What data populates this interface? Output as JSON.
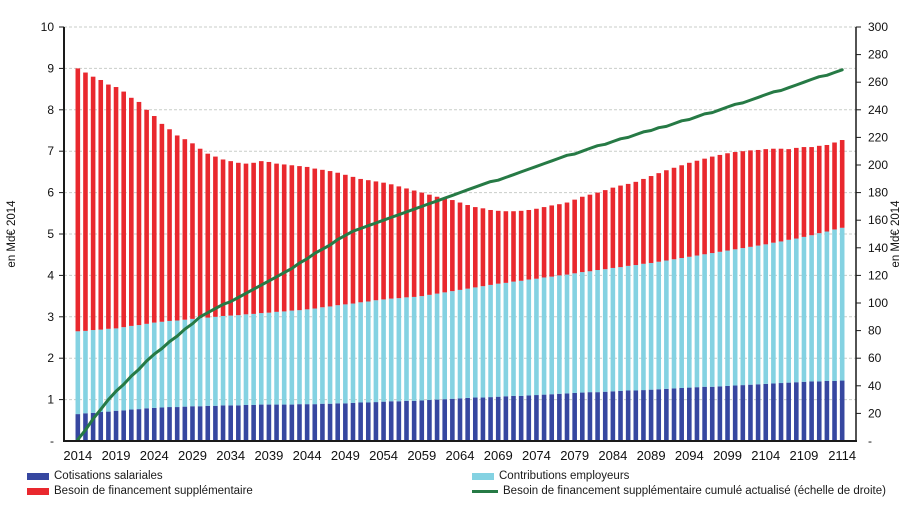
{
  "chart_data": {
    "type": "combo-stacked-bar-line",
    "title": "",
    "x_start": 2014,
    "x_end": 2114,
    "x_tick_step": 5,
    "x_tick_labels": [
      "2014",
      "2019",
      "2024",
      "2029",
      "2034",
      "2039",
      "2044",
      "2049",
      "2054",
      "2059",
      "2064",
      "2069",
      "2074",
      "2079",
      "2084",
      "2089",
      "2094",
      "2099",
      "2104",
      "2109",
      "2114"
    ],
    "left_axis": {
      "label": "en Md€ 2014",
      "min": 0,
      "max": 10,
      "step": 1,
      "tick_labels": [
        "10",
        "9",
        "8",
        "7",
        "6",
        "5",
        "4",
        "3",
        "2",
        "1",
        "-"
      ]
    },
    "right_axis": {
      "label": "en Md€ 2014",
      "min": 0,
      "max": 300,
      "step": 20,
      "tick_labels": [
        "300",
        "280",
        "260",
        "240",
        "220",
        "200",
        "180",
        "160",
        "140",
        "120",
        "100",
        "80",
        "60",
        "40",
        "20",
        "-"
      ]
    },
    "grid": {
      "on": true,
      "color": "#c9cdc9",
      "dash": "3 2"
    },
    "axis_line_color": "#1a1a1a",
    "legend_position": "bottom-two-columns",
    "series": [
      {
        "name": "Cotisations salariales",
        "type": "bar-stack",
        "axis": "left",
        "color": "#3647a0",
        "values": [
          0.65,
          0.67,
          0.68,
          0.7,
          0.71,
          0.73,
          0.74,
          0.76,
          0.77,
          0.79,
          0.8,
          0.81,
          0.82,
          0.82,
          0.83,
          0.84,
          0.84,
          0.85,
          0.85,
          0.86,
          0.86,
          0.86,
          0.87,
          0.87,
          0.88,
          0.88,
          0.88,
          0.88,
          0.88,
          0.89,
          0.89,
          0.89,
          0.9,
          0.9,
          0.91,
          0.91,
          0.92,
          0.93,
          0.93,
          0.94,
          0.95,
          0.96,
          0.96,
          0.97,
          0.97,
          0.98,
          0.99,
          1.0,
          1.01,
          1.02,
          1.03,
          1.04,
          1.05,
          1.05,
          1.06,
          1.07,
          1.08,
          1.09,
          1.09,
          1.1,
          1.11,
          1.12,
          1.13,
          1.14,
          1.15,
          1.16,
          1.17,
          1.18,
          1.18,
          1.19,
          1.2,
          1.21,
          1.22,
          1.22,
          1.23,
          1.24,
          1.25,
          1.26,
          1.27,
          1.28,
          1.29,
          1.3,
          1.31,
          1.31,
          1.32,
          1.33,
          1.34,
          1.35,
          1.36,
          1.37,
          1.38,
          1.39,
          1.4,
          1.41,
          1.42,
          1.43,
          1.44,
          1.44,
          1.45,
          1.45,
          1.46
        ]
      },
      {
        "name": "Contributions employeurs",
        "type": "bar-stack",
        "axis": "left",
        "color": "#84d2e2",
        "values": [
          2.0,
          1.99,
          2.0,
          1.99,
          2.0,
          1.99,
          2.01,
          2.02,
          2.03,
          2.04,
          2.06,
          2.07,
          2.08,
          2.09,
          2.1,
          2.11,
          2.13,
          2.13,
          2.15,
          2.16,
          2.17,
          2.18,
          2.19,
          2.2,
          2.21,
          2.22,
          2.24,
          2.25,
          2.27,
          2.27,
          2.29,
          2.31,
          2.33,
          2.35,
          2.37,
          2.39,
          2.4,
          2.42,
          2.44,
          2.46,
          2.47,
          2.48,
          2.49,
          2.5,
          2.51,
          2.52,
          2.54,
          2.56,
          2.58,
          2.6,
          2.62,
          2.64,
          2.66,
          2.69,
          2.71,
          2.73,
          2.74,
          2.76,
          2.78,
          2.8,
          2.81,
          2.83,
          2.84,
          2.86,
          2.87,
          2.89,
          2.91,
          2.92,
          2.95,
          2.96,
          2.98,
          2.99,
          3.01,
          3.03,
          3.05,
          3.06,
          3.08,
          3.1,
          3.12,
          3.14,
          3.16,
          3.18,
          3.2,
          3.23,
          3.25,
          3.27,
          3.29,
          3.31,
          3.33,
          3.35,
          3.37,
          3.4,
          3.42,
          3.45,
          3.47,
          3.5,
          3.53,
          3.58,
          3.61,
          3.66,
          3.69
        ]
      },
      {
        "name": "Besoin de financement supplémentaire",
        "type": "bar-stack",
        "axis": "left",
        "color": "#e9282e",
        "values": [
          6.35,
          6.24,
          6.12,
          6.03,
          5.9,
          5.83,
          5.69,
          5.51,
          5.39,
          5.17,
          4.99,
          4.78,
          4.63,
          4.47,
          4.36,
          4.24,
          4.09,
          3.96,
          3.87,
          3.78,
          3.73,
          3.68,
          3.64,
          3.65,
          3.67,
          3.64,
          3.58,
          3.55,
          3.51,
          3.48,
          3.44,
          3.38,
          3.32,
          3.27,
          3.2,
          3.13,
          3.06,
          2.98,
          2.93,
          2.87,
          2.82,
          2.76,
          2.7,
          2.63,
          2.57,
          2.5,
          2.42,
          2.34,
          2.27,
          2.2,
          2.11,
          2.02,
          1.94,
          1.88,
          1.81,
          1.76,
          1.73,
          1.7,
          1.69,
          1.68,
          1.69,
          1.7,
          1.72,
          1.72,
          1.74,
          1.78,
          1.82,
          1.85,
          1.87,
          1.91,
          1.94,
          1.97,
          1.98,
          2.01,
          2.05,
          2.1,
          2.14,
          2.18,
          2.21,
          2.24,
          2.27,
          2.29,
          2.31,
          2.33,
          2.34,
          2.35,
          2.35,
          2.34,
          2.33,
          2.31,
          2.3,
          2.27,
          2.24,
          2.19,
          2.19,
          2.17,
          2.13,
          2.11,
          2.09,
          2.1,
          2.12
        ]
      },
      {
        "name": "Besoin de financement supplémentaire cumulé actualisé (échelle de droite)",
        "type": "line",
        "axis": "right",
        "color": "#267a45",
        "values": [
          1,
          8,
          16,
          23,
          30,
          36,
          41,
          47,
          52,
          58,
          63,
          67,
          72,
          76,
          81,
          85,
          90,
          93,
          96,
          99,
          101,
          104,
          107,
          110,
          113,
          116,
          119,
          122,
          125,
          129,
          132,
          136,
          139,
          142,
          146,
          149,
          152,
          154,
          156,
          158,
          160,
          162,
          164,
          166,
          168,
          170,
          172,
          174,
          176,
          178,
          180,
          182,
          184,
          186,
          188,
          189,
          191,
          193,
          195,
          197,
          199,
          201,
          203,
          205,
          207,
          208,
          210,
          212,
          214,
          215,
          217,
          219,
          220,
          222,
          224,
          225,
          227,
          228,
          230,
          232,
          233,
          235,
          237,
          238,
          240,
          242,
          244,
          245,
          247,
          249,
          251,
          253,
          254,
          256,
          258,
          260,
          262,
          264,
          265,
          267,
          269
        ]
      }
    ]
  }
}
